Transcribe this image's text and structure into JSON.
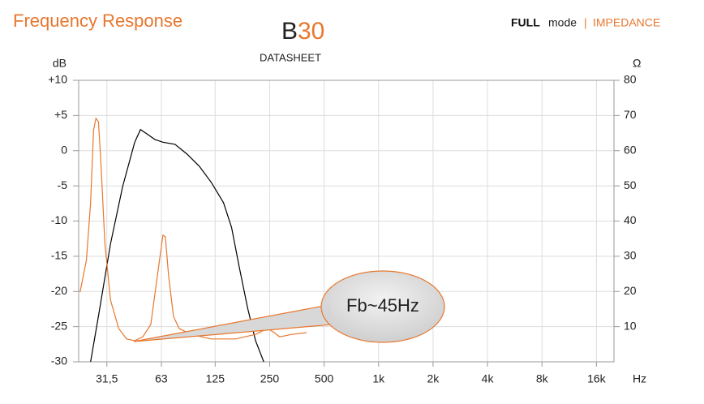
{
  "header": {
    "model_prefix": "B",
    "model_number": "30",
    "subtitle": "DATASHEET",
    "mode_strong": "FULL",
    "mode_text": "mode",
    "separator": "|",
    "mode_alt": "IMPEDANCE"
  },
  "chart_data": {
    "type": "line",
    "title": "Frequency Response",
    "y_label": "dB",
    "y2_label": "Ω",
    "x_label": "Hz",
    "annotation": "Fb~45Hz",
    "xscale": "log",
    "xlim": [
      22,
      20000
    ],
    "xticks": [
      {
        "value": 31.5,
        "label": "31,5"
      },
      63,
      125,
      250,
      500,
      {
        "value": 1000,
        "label": "1k"
      },
      {
        "value": 2000,
        "label": "2k"
      },
      {
        "value": 4000,
        "label": "4k"
      },
      {
        "value": 8000,
        "label": "8k"
      },
      {
        "value": 16000,
        "label": "16k"
      }
    ],
    "ylim": [
      -30,
      10
    ],
    "yticks": [
      -30,
      -25,
      -20,
      -15,
      -10,
      -5,
      0,
      {
        "value": 5,
        "label": "+5"
      },
      {
        "value": 10,
        "label": "+10"
      }
    ],
    "y2lim": [
      0,
      80
    ],
    "y2ticks": [
      10,
      20,
      30,
      40,
      50,
      60,
      70,
      80
    ],
    "grid": true,
    "series": [
      {
        "color": "#000000",
        "x": [
          25.6,
          28.3,
          33.0,
          38.5,
          44.9,
          48.3,
          52.3,
          58.0,
          64.3,
          75.0,
          87.5,
          102,
          119,
          139,
          154,
          170,
          189,
          209,
          232
        ],
        "values": [
          -30,
          -23.5,
          -13.2,
          -5.1,
          1.2,
          3.0,
          2.4,
          1.6,
          1.2,
          0.9,
          -0.5,
          -2.2,
          -4.5,
          -7.4,
          -10.9,
          -16.6,
          -22.4,
          -27.0,
          -30
        ]
      },
      {
        "color": "#e8772e",
        "axis": "y2",
        "x": [
          22.4,
          24.3,
          25.6,
          26.6,
          27.4,
          28.3,
          29.2,
          30.7,
          33.0,
          36.6,
          40.5,
          44.9,
          49.8,
          55.1,
          59.9,
          64.3,
          66.3,
          69.1,
          73.5,
          78.9,
          92.0,
          119,
          162,
          209,
          244,
          265,
          284,
          332,
          399
        ],
        "values": [
          19.8,
          29.0,
          45.2,
          65.9,
          69.2,
          68.2,
          56.7,
          33.7,
          17.5,
          9.5,
          6.5,
          6.0,
          7.1,
          10.6,
          24.4,
          36.0,
          35.5,
          24.4,
          12.9,
          9.5,
          7.8,
          6.5,
          6.5,
          7.8,
          9.5,
          8.3,
          7.1,
          7.8,
          8.3
        ]
      }
    ]
  }
}
